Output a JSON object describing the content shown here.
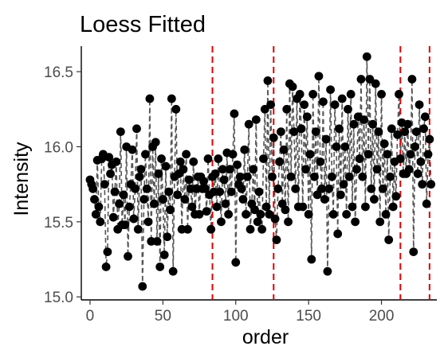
{
  "chart_data": {
    "type": "scatter",
    "title": "Loess Fitted",
    "xlabel": "order",
    "ylabel": "Intensity",
    "xlim": [
      -6,
      238
    ],
    "ylim": [
      14.98,
      16.67
    ],
    "xticks": [
      0,
      50,
      100,
      150,
      200
    ],
    "xtick_labels": [
      "0",
      "50",
      "100",
      "150",
      "200"
    ],
    "yticks": [
      15.0,
      15.5,
      16.0,
      16.5
    ],
    "ytick_labels": [
      "15.0",
      "15.5",
      "16.0",
      "16.5"
    ],
    "grid": false,
    "legend": "none",
    "point_color": "#000000",
    "line_color": "#555555",
    "line_style": "dashed",
    "vline_color": "#e00000",
    "vlines": [
      84,
      126,
      213,
      233
    ],
    "points": [
      [
        0,
        15.78
      ],
      [
        1,
        15.75
      ],
      [
        2,
        15.72
      ],
      [
        3,
        15.65
      ],
      [
        4,
        15.55
      ],
      [
        5,
        15.91
      ],
      [
        6,
        15.6
      ],
      [
        7,
        15.5
      ],
      [
        8,
        15.92
      ],
      [
        9,
        15.95
      ],
      [
        10,
        15.75
      ],
      [
        11,
        15.2
      ],
      [
        12,
        15.3
      ],
      [
        13,
        15.93
      ],
      [
        14,
        15.82
      ],
      [
        15,
        15.88
      ],
      [
        16,
        15.53
      ],
      [
        17,
        15.7
      ],
      [
        18,
        15.9
      ],
      [
        19,
        15.45
      ],
      [
        20,
        15.62
      ],
      [
        21,
        16.1
      ],
      [
        22,
        15.48
      ],
      [
        23,
        15.68
      ],
      [
        24,
        15.48
      ],
      [
        25,
        16.0
      ],
      [
        26,
        15.27
      ],
      [
        27,
        15.6
      ],
      [
        28,
        15.75
      ],
      [
        29,
        15.98
      ],
      [
        30,
        15.52
      ],
      [
        31,
        15.72
      ],
      [
        32,
        16.12
      ],
      [
        33,
        15.45
      ],
      [
        34,
        15.8
      ],
      [
        35,
        15.85
      ],
      [
        36,
        15.07
      ],
      [
        37,
        15.65
      ],
      [
        38,
        15.95
      ],
      [
        39,
        15.72
      ],
      [
        40,
        15.5
      ],
      [
        41,
        16.32
      ],
      [
        42,
        15.37
      ],
      [
        43,
        16.0
      ],
      [
        44,
        15.62
      ],
      [
        45,
        16.03
      ],
      [
        46,
        15.37
      ],
      [
        47,
        15.82
      ],
      [
        48,
        15.2
      ],
      [
        49,
        15.92
      ],
      [
        50,
        15.65
      ],
      [
        51,
        15.28
      ],
      [
        52,
        15.87
      ],
      [
        53,
        15.4
      ],
      [
        54,
        15.7
      ],
      [
        55,
        15.58
      ],
      [
        56,
        16.32
      ],
      [
        57,
        15.17
      ],
      [
        58,
        15.8
      ],
      [
        59,
        16.25
      ],
      [
        60,
        15.68
      ],
      [
        61,
        15.82
      ],
      [
        62,
        15.9
      ],
      [
        63,
        15.45
      ],
      [
        64,
        15.85
      ],
      [
        65,
        15.65
      ],
      [
        66,
        15.95
      ],
      [
        67,
        15.45
      ],
      [
        68,
        15.78
      ],
      [
        69,
        15.72
      ],
      [
        70,
        15.6
      ],
      [
        71,
        15.9
      ],
      [
        72,
        15.55
      ],
      [
        73,
        15.72
      ],
      [
        74,
        15.8
      ],
      [
        75,
        15.55
      ],
      [
        76,
        15.8
      ],
      [
        77,
        15.72
      ],
      [
        78,
        15.77
      ],
      [
        79,
        15.72
      ],
      [
        80,
        15.57
      ],
      [
        81,
        15.92
      ],
      [
        82,
        15.68
      ],
      [
        83,
        15.45
      ],
      [
        84,
        15.8
      ],
      [
        85,
        15.7
      ],
      [
        86,
        15.82
      ],
      [
        87,
        15.6
      ],
      [
        88,
        15.92
      ],
      [
        89,
        15.7
      ],
      [
        90,
        15.5
      ],
      [
        91,
        15.85
      ],
      [
        92,
        15.78
      ],
      [
        93,
        15.62
      ],
      [
        94,
        15.96
      ],
      [
        95,
        15.55
      ],
      [
        96,
        15.85
      ],
      [
        97,
        15.7
      ],
      [
        98,
        15.95
      ],
      [
        99,
        16.22
      ],
      [
        100,
        15.23
      ],
      [
        101,
        15.88
      ],
      [
        102,
        15.75
      ],
      [
        103,
        15.8
      ],
      [
        104,
        15.72
      ],
      [
        105,
        15.65
      ],
      [
        106,
        15.98
      ],
      [
        107,
        15.55
      ],
      [
        108,
        15.8
      ],
      [
        109,
        16.15
      ],
      [
        110,
        15.45
      ],
      [
        111,
        15.62
      ],
      [
        112,
        15.85
      ],
      [
        113,
        15.58
      ],
      [
        114,
        16.18
      ],
      [
        115,
        15.5
      ],
      [
        116,
        15.7
      ],
      [
        117,
        15.55
      ],
      [
        118,
        15.45
      ],
      [
        119,
        15.92
      ],
      [
        120,
        16.25
      ],
      [
        121,
        15.6
      ],
      [
        122,
        16.44
      ],
      [
        123,
        15.55
      ],
      [
        124,
        16.28
      ],
      [
        125,
        15.8
      ],
      [
        126,
        16.06
      ],
      [
        127,
        15.52
      ],
      [
        128,
        15.38
      ],
      [
        129,
        15.72
      ],
      [
        130,
        15.9
      ],
      [
        131,
        16.1
      ],
      [
        132,
        15.62
      ],
      [
        133,
        15.98
      ],
      [
        134,
        15.58
      ],
      [
        135,
        16.25
      ],
      [
        136,
        15.5
      ],
      [
        137,
        16.42
      ],
      [
        138,
        15.8
      ],
      [
        139,
        16.4
      ],
      [
        140,
        16.1
      ],
      [
        141,
        15.72
      ],
      [
        142,
        16.32
      ],
      [
        143,
        15.6
      ],
      [
        144,
        16.35
      ],
      [
        145,
        16.12
      ],
      [
        146,
        15.6
      ],
      [
        147,
        16.28
      ],
      [
        148,
        15.85
      ],
      [
        149,
        16.2
      ],
      [
        150,
        15.55
      ],
      [
        151,
        15.95
      ],
      [
        152,
        15.25
      ],
      [
        153,
        16.35
      ],
      [
        154,
        15.8
      ],
      [
        155,
        16.1
      ],
      [
        156,
        15.68
      ],
      [
        157,
        16.47
      ],
      [
        158,
        15.9
      ],
      [
        159,
        15.72
      ],
      [
        160,
        16.3
      ],
      [
        161,
        15.65
      ],
      [
        162,
        16.05
      ],
      [
        163,
        15.17
      ],
      [
        164,
        15.72
      ],
      [
        165,
        16.38
      ],
      [
        166,
        15.8
      ],
      [
        167,
        15.55
      ],
      [
        168,
        16.28
      ],
      [
        169,
        16.0
      ],
      [
        170,
        15.42
      ],
      [
        171,
        16.12
      ],
      [
        172,
        15.68
      ],
      [
        173,
        16.32
      ],
      [
        174,
        15.75
      ],
      [
        175,
        16.0
      ],
      [
        176,
        15.55
      ],
      [
        177,
        16.25
      ],
      [
        178,
        15.8
      ],
      [
        179,
        16.35
      ],
      [
        180,
        15.6
      ],
      [
        181,
        16.15
      ],
      [
        182,
        15.5
      ],
      [
        183,
        15.85
      ],
      [
        184,
        16.2
      ],
      [
        185,
        15.92
      ],
      [
        186,
        16.45
      ],
      [
        187,
        15.8
      ],
      [
        188,
        16.18
      ],
      [
        189,
        15.6
      ],
      [
        190,
        16.6
      ],
      [
        191,
        15.95
      ],
      [
        192,
        16.45
      ],
      [
        193,
        15.72
      ],
      [
        194,
        16.15
      ],
      [
        195,
        15.65
      ],
      [
        196,
        16.42
      ],
      [
        197,
        15.85
      ],
      [
        198,
        16.1
      ],
      [
        199,
        15.5
      ],
      [
        200,
        16.35
      ],
      [
        201,
        15.72
      ],
      [
        202,
        16.02
      ],
      [
        203,
        15.55
      ],
      [
        204,
        15.95
      ],
      [
        205,
        15.38
      ],
      [
        206,
        15.8
      ],
      [
        207,
        16.12
      ],
      [
        208,
        15.6
      ],
      [
        209,
        15.9
      ],
      [
        210,
        15.67
      ],
      [
        211,
        16.08
      ],
      [
        212,
        16.35
      ],
      [
        213,
        15.92
      ],
      [
        214,
        16.16
      ],
      [
        215,
        15.82
      ],
      [
        216,
        16.1
      ],
      [
        217,
        15.82
      ],
      [
        218,
        16.15
      ],
      [
        219,
        15.85
      ],
      [
        220,
        15.95
      ],
      [
        221,
        16.45
      ],
      [
        222,
        15.3
      ],
      [
        223,
        16.0
      ],
      [
        224,
        16.1
      ],
      [
        225,
        15.82
      ],
      [
        226,
        16.28
      ],
      [
        227,
        15.9
      ],
      [
        228,
        15.75
      ],
      [
        229,
        16.12
      ],
      [
        230,
        16.2
      ],
      [
        231,
        15.62
      ],
      [
        232,
        15.95
      ],
      [
        233,
        16.05
      ],
      [
        234,
        15.75
      ]
    ]
  }
}
